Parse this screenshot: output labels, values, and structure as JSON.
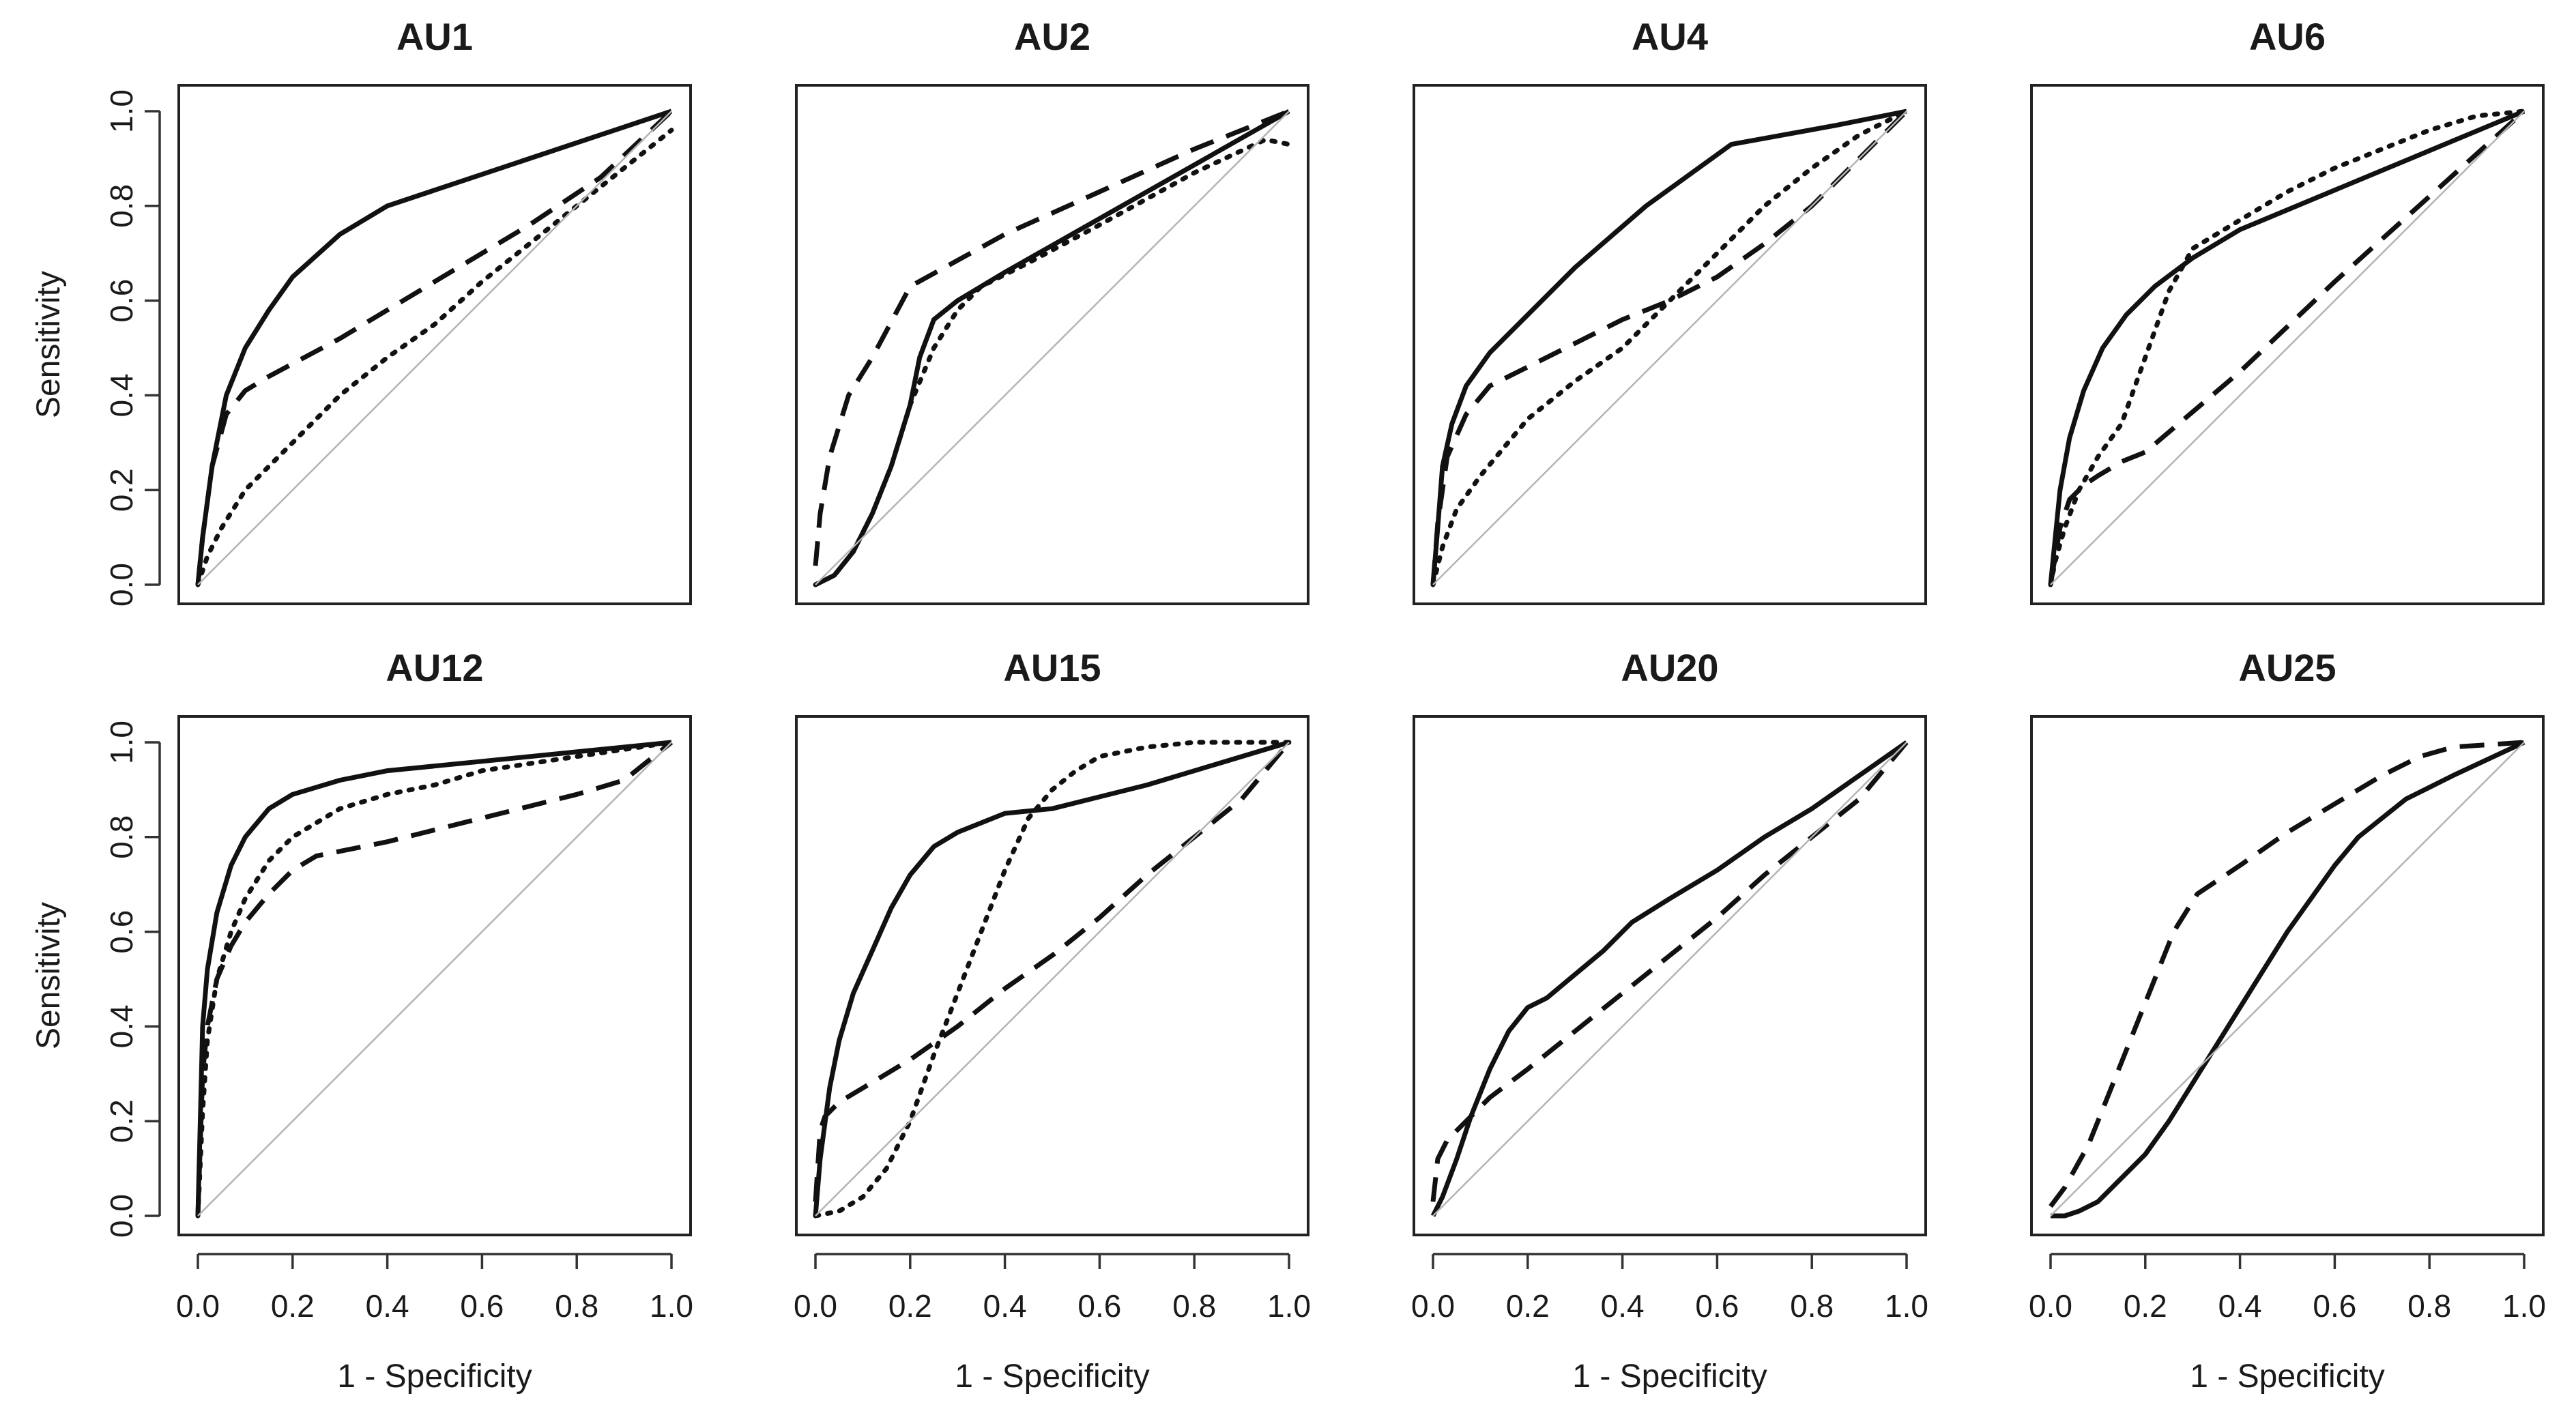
{
  "chart_data": [
    {
      "type": "line",
      "title": "AU1",
      "xlabel": "",
      "ylabel": "Sensitivity",
      "xlim": [
        0,
        1
      ],
      "ylim": [
        0,
        1
      ],
      "xticks": [
        "0.0",
        "0.2",
        "0.4",
        "0.6",
        "0.8",
        "1.0"
      ],
      "yticks": [
        "0.0",
        "0.2",
        "0.4",
        "0.6",
        "0.8",
        "1.0"
      ],
      "legend": "none",
      "grid": false,
      "series": [
        {
          "style": "solid",
          "x": [
            0,
            0.01,
            0.03,
            0.06,
            0.1,
            0.15,
            0.2,
            0.3,
            0.4,
            1.0
          ],
          "y": [
            0,
            0.1,
            0.25,
            0.4,
            0.5,
            0.58,
            0.65,
            0.74,
            0.8,
            1.0
          ]
        },
        {
          "style": "dashed",
          "x": [
            0,
            0.01,
            0.03,
            0.06,
            0.1,
            0.15,
            0.3,
            0.5,
            0.7,
            0.85,
            1.0
          ],
          "y": [
            0,
            0.1,
            0.25,
            0.36,
            0.41,
            0.44,
            0.52,
            0.64,
            0.76,
            0.86,
            1.0
          ]
        },
        {
          "style": "dotted",
          "x": [
            0,
            0.02,
            0.05,
            0.1,
            0.2,
            0.3,
            0.4,
            0.5,
            0.6,
            0.7,
            0.8,
            0.9,
            1.0
          ],
          "y": [
            0,
            0.06,
            0.12,
            0.2,
            0.3,
            0.4,
            0.48,
            0.55,
            0.64,
            0.72,
            0.8,
            0.88,
            0.96
          ]
        },
        {
          "style": "reference",
          "x": [
            0,
            1
          ],
          "y": [
            0,
            1
          ]
        }
      ]
    },
    {
      "type": "line",
      "title": "AU2",
      "xlabel": "",
      "ylabel": "",
      "xlim": [
        0,
        1
      ],
      "ylim": [
        0,
        1
      ],
      "xticks": [
        "0.0",
        "0.2",
        "0.4",
        "0.6",
        "0.8",
        "1.0"
      ],
      "yticks": [],
      "legend": "none",
      "grid": false,
      "series": [
        {
          "style": "solid",
          "x": [
            0,
            0.04,
            0.08,
            0.12,
            0.16,
            0.2,
            0.22,
            0.25,
            0.3,
            0.4,
            1.0
          ],
          "y": [
            0,
            0.02,
            0.07,
            0.15,
            0.25,
            0.38,
            0.48,
            0.56,
            0.6,
            0.66,
            1.0
          ]
        },
        {
          "style": "dashed",
          "x": [
            0,
            0.01,
            0.03,
            0.07,
            0.12,
            0.2,
            0.4,
            0.6,
            0.8,
            1.0
          ],
          "y": [
            0.04,
            0.15,
            0.27,
            0.4,
            0.48,
            0.63,
            0.74,
            0.83,
            0.92,
            1.0
          ]
        },
        {
          "style": "dotted",
          "x": [
            0,
            0.04,
            0.08,
            0.12,
            0.16,
            0.2,
            0.25,
            0.3,
            0.35,
            0.45,
            0.6,
            0.8,
            0.95,
            1.0
          ],
          "y": [
            0,
            0.02,
            0.07,
            0.15,
            0.25,
            0.38,
            0.5,
            0.58,
            0.63,
            0.68,
            0.76,
            0.87,
            0.94,
            0.93
          ]
        },
        {
          "style": "reference",
          "x": [
            0,
            1
          ],
          "y": [
            0,
            1
          ]
        }
      ]
    },
    {
      "type": "line",
      "title": "AU4",
      "xlabel": "",
      "ylabel": "",
      "xlim": [
        0,
        1
      ],
      "ylim": [
        0,
        1
      ],
      "xticks": [
        "0.0",
        "0.2",
        "0.4",
        "0.6",
        "0.8",
        "1.0"
      ],
      "yticks": [],
      "legend": "none",
      "grid": false,
      "series": [
        {
          "style": "solid",
          "x": [
            0,
            0.01,
            0.02,
            0.04,
            0.07,
            0.12,
            0.2,
            0.3,
            0.45,
            0.63,
            0.85,
            1.0
          ],
          "y": [
            0,
            0.12,
            0.25,
            0.34,
            0.42,
            0.49,
            0.57,
            0.67,
            0.8,
            0.93,
            0.97,
            1.0
          ]
        },
        {
          "style": "dashed",
          "x": [
            0,
            0.01,
            0.03,
            0.07,
            0.12,
            0.2,
            0.3,
            0.4,
            0.5,
            0.6,
            0.7,
            0.8,
            0.9,
            1.0
          ],
          "y": [
            0,
            0.13,
            0.27,
            0.36,
            0.42,
            0.46,
            0.51,
            0.56,
            0.6,
            0.65,
            0.72,
            0.8,
            0.9,
            1.0
          ]
        },
        {
          "style": "dotted",
          "x": [
            0,
            0.02,
            0.05,
            0.1,
            0.15,
            0.2,
            0.3,
            0.4,
            0.5,
            0.6,
            0.7,
            0.8,
            0.9,
            1.0
          ],
          "y": [
            0,
            0.08,
            0.16,
            0.23,
            0.29,
            0.35,
            0.43,
            0.5,
            0.6,
            0.7,
            0.8,
            0.88,
            0.95,
            1.0
          ]
        },
        {
          "style": "reference",
          "x": [
            0,
            1
          ],
          "y": [
            0,
            1
          ]
        }
      ]
    },
    {
      "type": "line",
      "title": "AU6",
      "xlabel": "",
      "ylabel": "",
      "xlim": [
        0,
        1
      ],
      "ylim": [
        0,
        1
      ],
      "xticks": [
        "0.0",
        "0.2",
        "0.4",
        "0.6",
        "0.8",
        "1.0"
      ],
      "yticks": [],
      "legend": "none",
      "grid": false,
      "series": [
        {
          "style": "solid",
          "x": [
            0,
            0.01,
            0.02,
            0.04,
            0.07,
            0.11,
            0.16,
            0.22,
            0.3,
            0.4,
            1.0
          ],
          "y": [
            0,
            0.1,
            0.2,
            0.31,
            0.41,
            0.5,
            0.57,
            0.63,
            0.69,
            0.75,
            1.0
          ]
        },
        {
          "style": "dashed",
          "x": [
            0,
            0.01,
            0.02,
            0.04,
            0.07,
            0.1,
            0.15,
            0.2,
            0.4,
            0.6,
            0.8,
            1.0
          ],
          "y": [
            0,
            0.06,
            0.12,
            0.18,
            0.21,
            0.23,
            0.26,
            0.28,
            0.45,
            0.64,
            0.82,
            1.0
          ]
        },
        {
          "style": "dotted",
          "x": [
            0,
            0.01,
            0.03,
            0.06,
            0.1,
            0.15,
            0.2,
            0.25,
            0.3,
            0.4,
            0.5,
            0.6,
            0.7,
            0.8,
            0.9,
            1.0
          ],
          "y": [
            0,
            0.05,
            0.12,
            0.2,
            0.27,
            0.34,
            0.48,
            0.62,
            0.71,
            0.77,
            0.83,
            0.88,
            0.92,
            0.96,
            0.99,
            1.0
          ]
        },
        {
          "style": "reference",
          "x": [
            0,
            1
          ],
          "y": [
            0,
            1
          ]
        }
      ]
    },
    {
      "type": "line",
      "title": "AU12",
      "xlabel": "1 - Specificity",
      "ylabel": "Sensitivity",
      "xlim": [
        0,
        1
      ],
      "ylim": [
        0,
        1
      ],
      "xticks": [
        "0.0",
        "0.2",
        "0.4",
        "0.6",
        "0.8",
        "1.0"
      ],
      "yticks": [
        "0.0",
        "0.2",
        "0.4",
        "0.6",
        "0.8",
        "1.0"
      ],
      "legend": "none",
      "grid": false,
      "series": [
        {
          "style": "solid",
          "x": [
            0,
            0.005,
            0.01,
            0.02,
            0.04,
            0.07,
            0.1,
            0.15,
            0.2,
            0.3,
            0.4,
            0.6,
            0.8,
            1.0
          ],
          "y": [
            0,
            0.2,
            0.4,
            0.52,
            0.64,
            0.74,
            0.8,
            0.86,
            0.89,
            0.92,
            0.94,
            0.96,
            0.98,
            1.0
          ]
        },
        {
          "style": "dashed",
          "x": [
            0,
            0.005,
            0.01,
            0.02,
            0.04,
            0.07,
            0.1,
            0.15,
            0.2,
            0.25,
            0.4,
            0.6,
            0.8,
            0.9,
            1.0
          ],
          "y": [
            0,
            0.15,
            0.3,
            0.4,
            0.5,
            0.57,
            0.62,
            0.68,
            0.73,
            0.76,
            0.79,
            0.84,
            0.89,
            0.92,
            1.0
          ]
        },
        {
          "style": "dotted",
          "x": [
            0,
            0.01,
            0.02,
            0.04,
            0.07,
            0.1,
            0.15,
            0.2,
            0.3,
            0.4,
            0.5,
            0.6,
            0.8,
            1.0
          ],
          "y": [
            0,
            0.22,
            0.37,
            0.5,
            0.6,
            0.67,
            0.75,
            0.8,
            0.86,
            0.89,
            0.91,
            0.94,
            0.97,
            1.0
          ]
        },
        {
          "style": "reference",
          "x": [
            0,
            1
          ],
          "y": [
            0,
            1
          ]
        }
      ]
    },
    {
      "type": "line",
      "title": "AU15",
      "xlabel": "1 - Specificity",
      "ylabel": "",
      "xlim": [
        0,
        1
      ],
      "ylim": [
        0,
        1
      ],
      "xticks": [
        "0.0",
        "0.2",
        "0.4",
        "0.6",
        "0.8",
        "1.0"
      ],
      "yticks": [],
      "legend": "none",
      "grid": false,
      "series": [
        {
          "style": "solid",
          "x": [
            0,
            0.01,
            0.03,
            0.05,
            0.08,
            0.12,
            0.16,
            0.2,
            0.25,
            0.3,
            0.4,
            0.5,
            0.7,
            1.0
          ],
          "y": [
            0,
            0.12,
            0.27,
            0.37,
            0.47,
            0.56,
            0.65,
            0.72,
            0.78,
            0.81,
            0.85,
            0.86,
            0.91,
            1.0
          ]
        },
        {
          "style": "dashed",
          "x": [
            0,
            0.01,
            0.02,
            0.05,
            0.1,
            0.2,
            0.3,
            0.4,
            0.5,
            0.6,
            0.7,
            0.8,
            0.9,
            1.0
          ],
          "y": [
            0.03,
            0.18,
            0.21,
            0.24,
            0.27,
            0.33,
            0.4,
            0.48,
            0.55,
            0.63,
            0.72,
            0.8,
            0.88,
            1.0
          ]
        },
        {
          "style": "dotted",
          "x": [
            0,
            0.05,
            0.1,
            0.15,
            0.2,
            0.25,
            0.3,
            0.35,
            0.4,
            0.45,
            0.5,
            0.55,
            0.6,
            0.7,
            0.8,
            0.9,
            1.0
          ],
          "y": [
            0,
            0.01,
            0.04,
            0.1,
            0.2,
            0.34,
            0.47,
            0.6,
            0.73,
            0.84,
            0.9,
            0.94,
            0.97,
            0.99,
            1.0,
            1.0,
            1.0
          ]
        },
        {
          "style": "reference",
          "x": [
            0,
            1
          ],
          "y": [
            0,
            1
          ]
        }
      ]
    },
    {
      "type": "line",
      "title": "AU20",
      "xlabel": "1 - Specificity",
      "ylabel": "",
      "xlim": [
        0,
        1
      ],
      "ylim": [
        0,
        1
      ],
      "xticks": [
        "0.0",
        "0.2",
        "0.4",
        "0.6",
        "0.8",
        "1.0"
      ],
      "yticks": [],
      "legend": "none",
      "grid": false,
      "series": [
        {
          "style": "solid",
          "x": [
            0,
            0.02,
            0.05,
            0.08,
            0.12,
            0.16,
            0.2,
            0.24,
            0.3,
            0.36,
            0.42,
            0.5,
            0.6,
            0.7,
            0.8,
            0.9,
            1.0
          ],
          "y": [
            0,
            0.04,
            0.12,
            0.21,
            0.31,
            0.39,
            0.44,
            0.46,
            0.51,
            0.56,
            0.62,
            0.67,
            0.73,
            0.8,
            0.86,
            0.93,
            1.0
          ]
        },
        {
          "style": "dashed",
          "x": [
            0,
            0.01,
            0.03,
            0.07,
            0.12,
            0.2,
            0.3,
            0.4,
            0.5,
            0.6,
            0.7,
            0.8,
            0.9,
            1.0
          ],
          "y": [
            0.03,
            0.12,
            0.16,
            0.2,
            0.25,
            0.31,
            0.39,
            0.47,
            0.55,
            0.63,
            0.72,
            0.8,
            0.88,
            1.0
          ]
        },
        {
          "style": "reference",
          "x": [
            0,
            1
          ],
          "y": [
            0,
            1
          ]
        }
      ]
    },
    {
      "type": "line",
      "title": "AU25",
      "xlabel": "1 - Specificity",
      "ylabel": "",
      "xlim": [
        0,
        1
      ],
      "ylim": [
        0,
        1
      ],
      "xticks": [
        "0.0",
        "0.2",
        "0.4",
        "0.6",
        "0.8",
        "1.0"
      ],
      "yticks": [],
      "legend": "none",
      "grid": false,
      "series": [
        {
          "style": "solid",
          "x": [
            0,
            0.03,
            0.06,
            0.1,
            0.15,
            0.2,
            0.25,
            0.3,
            0.35,
            0.4,
            0.45,
            0.5,
            0.55,
            0.6,
            0.65,
            0.75,
            0.85,
            1.0
          ],
          "y": [
            0,
            0,
            0.01,
            0.03,
            0.08,
            0.13,
            0.2,
            0.28,
            0.36,
            0.44,
            0.52,
            0.6,
            0.67,
            0.74,
            0.8,
            0.88,
            0.93,
            1.0
          ]
        },
        {
          "style": "dashed",
          "x": [
            0,
            0.03,
            0.08,
            0.14,
            0.2,
            0.26,
            0.31,
            0.4,
            0.5,
            0.6,
            0.7,
            0.78,
            0.85,
            1.0
          ],
          "y": [
            0.02,
            0.06,
            0.15,
            0.3,
            0.45,
            0.6,
            0.68,
            0.74,
            0.81,
            0.87,
            0.93,
            0.97,
            0.99,
            1.0
          ]
        },
        {
          "style": "reference",
          "x": [
            0,
            1
          ],
          "y": [
            0,
            1
          ]
        }
      ]
    }
  ]
}
